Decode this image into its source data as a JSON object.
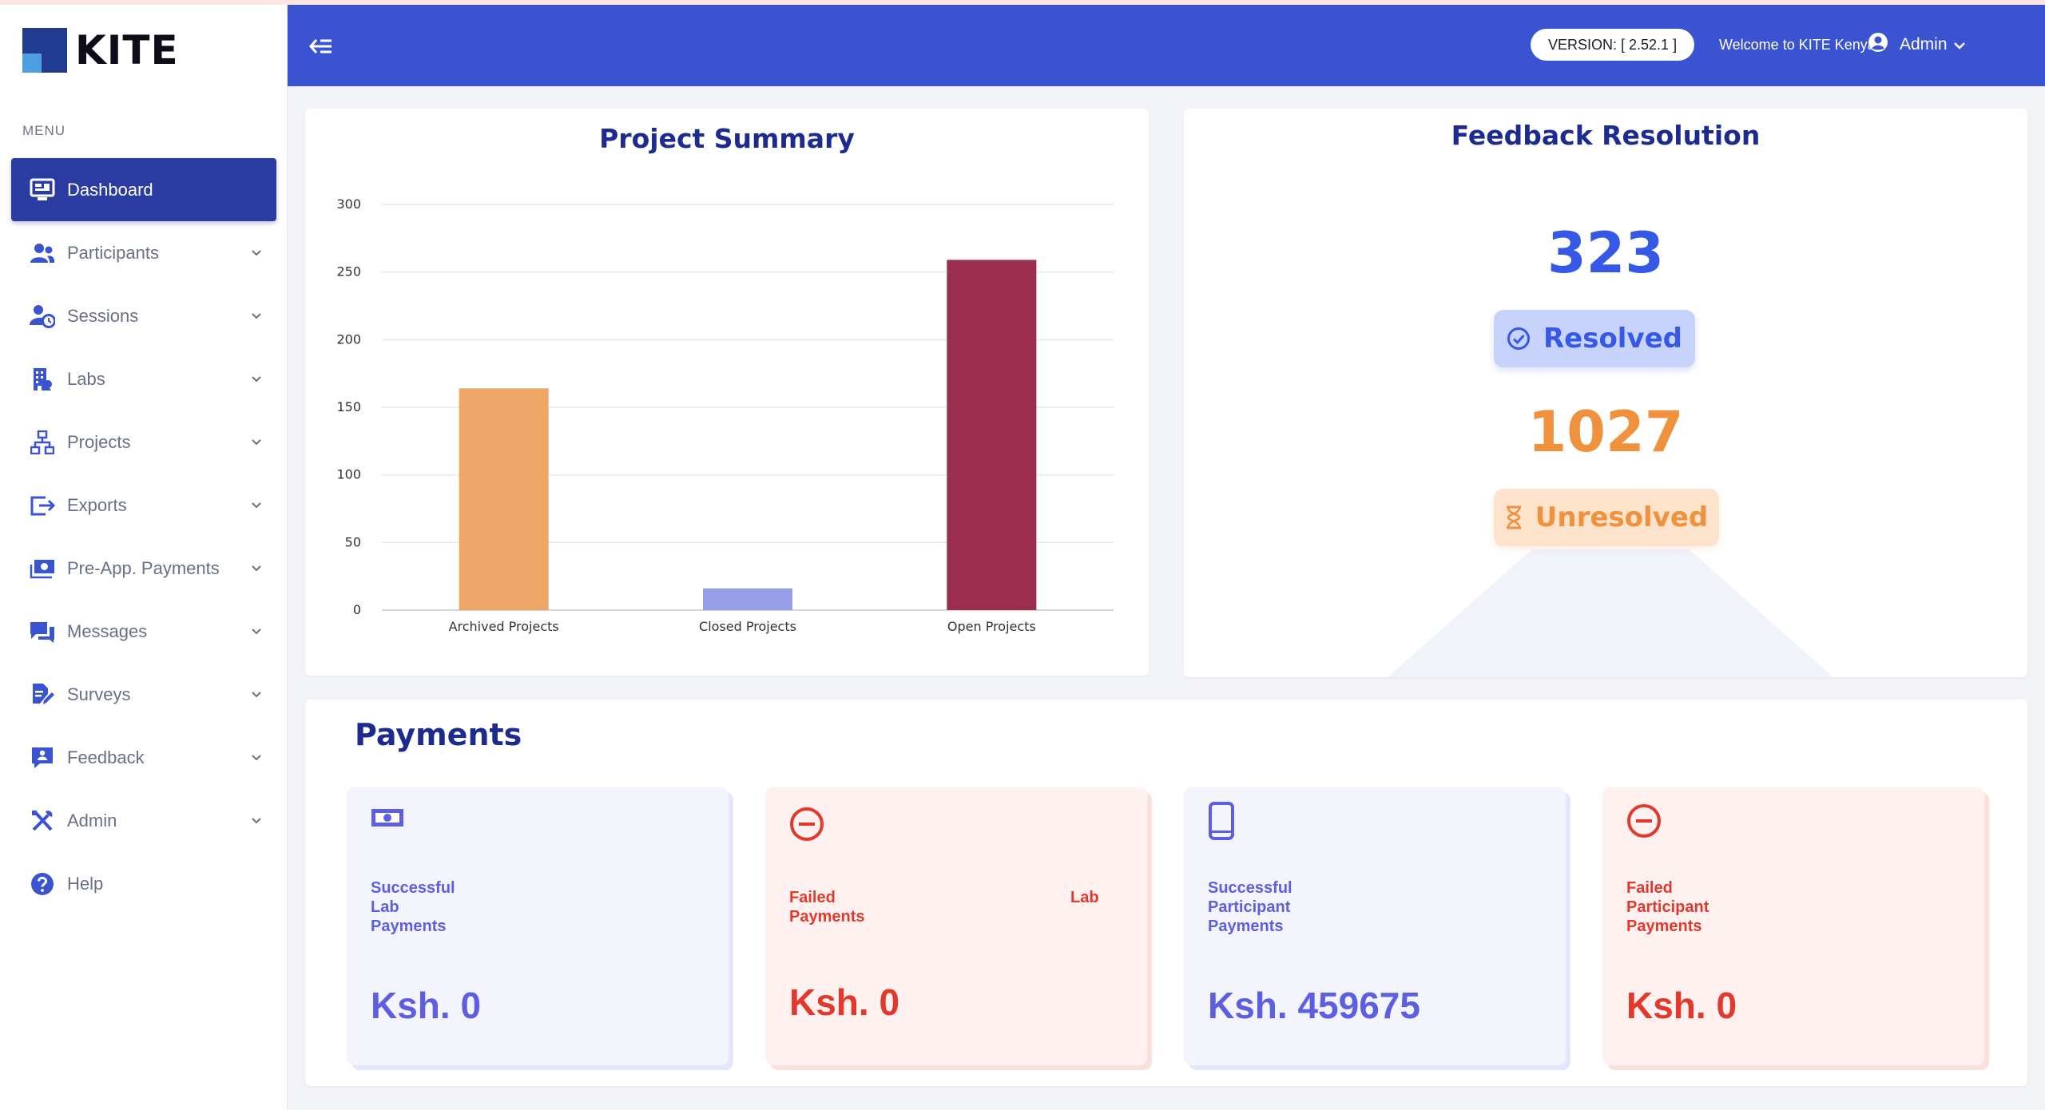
{
  "brand": {
    "name": "KITE"
  },
  "sidebar": {
    "menu_title": "MENU",
    "items": [
      {
        "label": "Dashboard",
        "icon": "monitor-icon"
      },
      {
        "label": "Participants",
        "icon": "users-icon"
      },
      {
        "label": "Sessions",
        "icon": "user-clock-icon"
      },
      {
        "label": "Labs",
        "icon": "building-icon"
      },
      {
        "label": "Projects",
        "icon": "network-icon"
      },
      {
        "label": "Exports",
        "icon": "export-icon"
      },
      {
        "label": "Pre-App. Payments",
        "icon": "money-icon"
      },
      {
        "label": "Messages",
        "icon": "chat-icon"
      },
      {
        "label": "Surveys",
        "icon": "survey-icon"
      },
      {
        "label": "Feedback",
        "icon": "feedback-icon"
      },
      {
        "label": "Admin",
        "icon": "tools-icon"
      },
      {
        "label": "Help",
        "icon": "help-icon"
      }
    ]
  },
  "topbar": {
    "version": "VERSION: [ 2.52.1 ]",
    "welcome": "Welcome to KITE Kenya,",
    "user": "Admin"
  },
  "project_summary": {
    "title": "Project Summary",
    "chart_data": {
      "type": "bar",
      "title": "Project Summary",
      "categories": [
        "Archived Projects",
        "Closed Projects",
        "Open Projects"
      ],
      "values": [
        164,
        16,
        259
      ],
      "colors": [
        "#eea666",
        "#979ee6",
        "#9b2e4f"
      ],
      "y_ticks": [
        "300",
        "250",
        "200",
        "150",
        "100",
        "50",
        "0"
      ],
      "ylim": [
        0,
        300
      ],
      "grid": true
    }
  },
  "feedback": {
    "title": "Feedback Resolution",
    "resolved_count": "323",
    "resolved_label": "Resolved",
    "unresolved_count": "1027",
    "unresolved_label": "Unresolved"
  },
  "payments": {
    "title": "Payments",
    "boxes": [
      {
        "label_lines": [
          "Successful",
          "Lab",
          "Payments"
        ],
        "amount": "Ksh. 0"
      },
      {
        "label_lines": [
          "Failed",
          "Payments"
        ],
        "label_extra": "Lab",
        "amount": "Ksh. 0"
      },
      {
        "label_lines": [
          "Successful",
          "Participant",
          "Payments"
        ],
        "amount": "Ksh. 459675"
      },
      {
        "label_lines": [
          "Failed",
          "Participant",
          "Payments"
        ],
        "amount": "Ksh. 0"
      }
    ]
  },
  "colors": {
    "primary": "#3a53d0",
    "nav_active": "#2a3ca1",
    "heading": "#1d2b8f",
    "resolved": "#3558e6",
    "unresolved": "#f0913d",
    "success": "#5d5fe0",
    "failed": "#e2392c"
  }
}
